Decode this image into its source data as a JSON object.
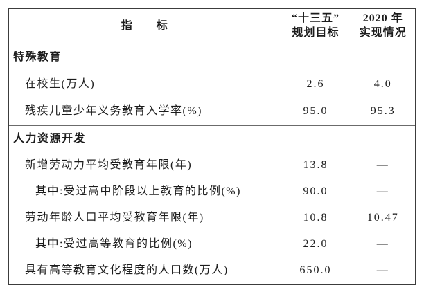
{
  "colors": {
    "background": "#ffffff",
    "text": "#1c1c1c",
    "border_outer": "#3c3c3c",
    "border_inner": "#6b6b6b"
  },
  "table": {
    "header": {
      "indicator": "指　　标",
      "plan": "“十三五”\n规划目标",
      "actual": "2020 年\n实现情况"
    },
    "rows": [
      {
        "label": "特殊教育",
        "type": "section",
        "plan": "",
        "actual": ""
      },
      {
        "label": "在校生(万人)",
        "type": "data",
        "plan": "2.6",
        "actual": "4.0"
      },
      {
        "label": "残疾儿童少年义务教育入学率(%)",
        "type": "data",
        "plan": "95.0",
        "actual": "95.3"
      },
      {
        "label": "人力资源开发",
        "type": "section",
        "plan": "",
        "actual": ""
      },
      {
        "label": "新增劳动力平均受教育年限(年)",
        "type": "data",
        "plan": "13.8",
        "actual": "—"
      },
      {
        "label": "其中:受过高中阶段以上教育的比例(%)",
        "type": "sub",
        "plan": "90.0",
        "actual": "—"
      },
      {
        "label": "劳动年龄人口平均受教育年限(年)",
        "type": "data",
        "plan": "10.8",
        "actual": "10.47"
      },
      {
        "label": "其中:受过高等教育的比例(%)",
        "type": "sub",
        "plan": "22.0",
        "actual": "—"
      },
      {
        "label": "具有高等教育文化程度的人口数(万人)",
        "type": "data",
        "plan": "650.0",
        "actual": "—"
      }
    ]
  }
}
